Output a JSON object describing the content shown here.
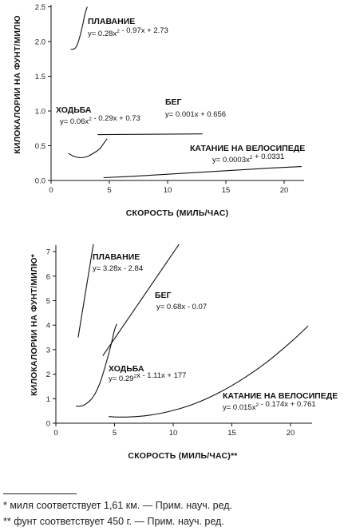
{
  "chart_data": [
    {
      "type": "line",
      "xlabel": "СКОРОСТЬ (МИЛЬ/ЧАС)",
      "ylabel": "КИЛОКАЛОРИИ НА ФУНТ/МИЛЮ",
      "xlim": [
        0,
        22
      ],
      "ylim": [
        0,
        2.6
      ],
      "xticks": [
        "0",
        "5",
        "10",
        "15",
        "20"
      ],
      "yticks": [
        "0.0",
        "0.5",
        "1.0",
        "1.5",
        "2.0",
        "2.5"
      ],
      "grid": false,
      "series": [
        {
          "name": "ПЛАВАНИЕ",
          "equation": "y= 0.28x² - 0.97x + 2.73",
          "x": [
            1.7,
            1.9,
            2.1,
            2.3,
            2.5,
            2.7,
            2.9,
            3.1
          ],
          "y": [
            1.89,
            1.89,
            1.91,
            1.98,
            2.09,
            2.23,
            2.39,
            2.5
          ]
        },
        {
          "name": "БЕГ",
          "equation": "y= 0.001x + 0.656",
          "x": [
            4.0,
            13.0
          ],
          "y": [
            0.66,
            0.67
          ]
        },
        {
          "name": "ХОДЬБА",
          "equation": "y= 0.06x² - 0.29x + 0.73",
          "x": [
            1.5,
            1.8,
            2.1,
            2.4,
            2.7,
            3.0,
            3.3,
            3.6,
            3.9,
            4.2,
            4.5,
            4.8
          ],
          "y": [
            0.39,
            0.36,
            0.34,
            0.33,
            0.33,
            0.34,
            0.36,
            0.39,
            0.42,
            0.46,
            0.53,
            0.6
          ]
        },
        {
          "name": "КАТАНИЕ НА ВЕЛОСИПЕДЕ",
          "equation": "y= 0.0003x² + 0.0331",
          "x": [
            4.5,
            7,
            10,
            13,
            16,
            19,
            21.5
          ],
          "y": [
            0.04,
            0.06,
            0.09,
            0.12,
            0.15,
            0.18,
            0.2
          ]
        }
      ]
    },
    {
      "type": "line",
      "xlabel": "СКОРОСТЬ (МИЛЬ/ЧАС)**",
      "ylabel": "КИЛОКАЛОРИИ НА ФУНТ/МИЛЮ*",
      "xlim": [
        0,
        22
      ],
      "ylim": [
        0,
        7.3
      ],
      "xticks": [
        "0",
        "5",
        "10",
        "15",
        "20"
      ],
      "yticks": [
        "0",
        "1",
        "2",
        "3",
        "4",
        "5",
        "6",
        "7"
      ],
      "grid": false,
      "series": [
        {
          "name": "ПЛАВАНИЕ",
          "equation": "y= 3.28x - 2.84",
          "x": [
            1.9,
            3.2
          ],
          "y": [
            3.5,
            7.3
          ]
        },
        {
          "name": "БЕГ",
          "equation": "y= 0.68x - 0.07",
          "x": [
            4.0,
            10.5
          ],
          "y": [
            2.75,
            7.3
          ]
        },
        {
          "name": "ХОДЬБА",
          "equation": "y= 0.29²x - 1.11x + 177",
          "x": [
            1.7,
            2.0,
            2.3,
            2.6,
            2.9,
            3.2,
            3.5,
            3.8,
            4.1,
            4.4,
            4.7,
            5.0,
            5.2
          ],
          "y": [
            0.7,
            0.69,
            0.72,
            0.8,
            0.92,
            1.09,
            1.35,
            1.7,
            2.15,
            2.65,
            3.2,
            3.8,
            4.05
          ]
        },
        {
          "name": "КАТАНИЕ НА ВЕЛОСИПЕДЕ",
          "equation": "y= 0.015x² - 0.174x + 0.761",
          "x": [
            4.5,
            6,
            8,
            10,
            12,
            14,
            16,
            18,
            20,
            21.5
          ],
          "y": [
            0.27,
            0.25,
            0.33,
            0.52,
            0.83,
            1.27,
            1.83,
            2.5,
            3.3,
            3.97
          ]
        }
      ]
    }
  ],
  "footnotes": [
    "* миля соответствует 1,61 км. — Прим. науч. ред.",
    "** фунт соответствует 450 г. — Прим. науч. ред."
  ]
}
